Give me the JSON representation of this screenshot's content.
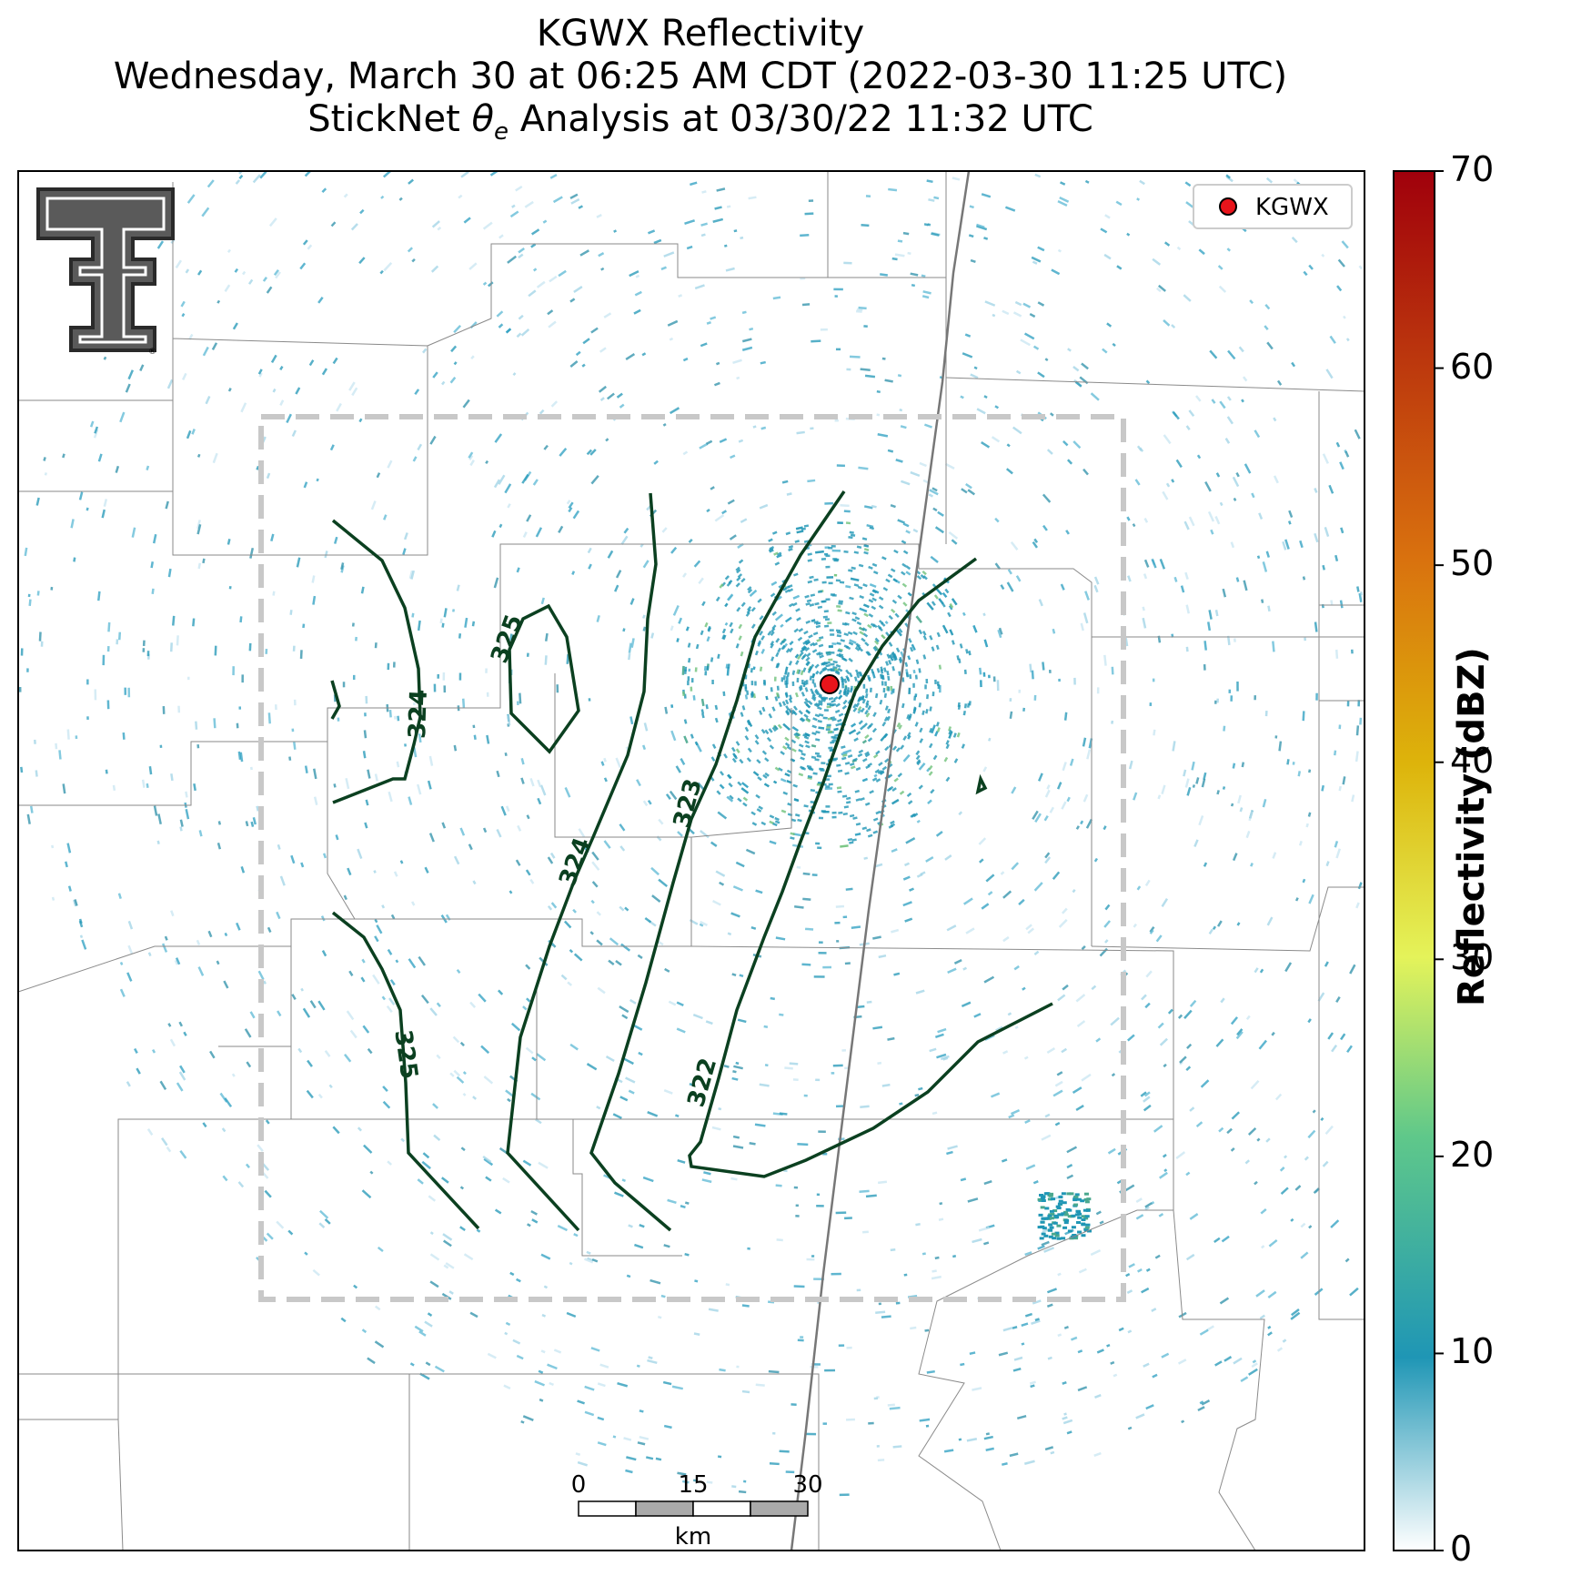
{
  "title": {
    "line1": "KGWX Reflectivity",
    "line2": "Wednesday, March 30 at 06:25 AM CDT (2022-03-30 11:25 UTC)",
    "line3_prefix": "StickNet ",
    "line3_theta": "θ",
    "line3_sub": "e",
    "line3_suffix": " Analysis at 03/30/22 11:32 UTC"
  },
  "legend": {
    "label": "KGWX",
    "marker_color": "#e8141b"
  },
  "radar_site": {
    "name": "KGWX"
  },
  "colorbar": {
    "label": "Reflectivity (dBZ)",
    "ticks": [
      "0",
      "10",
      "20",
      "30",
      "40",
      "50",
      "60",
      "70"
    ],
    "min": 0,
    "max": 70,
    "colors": [
      "#ffffff",
      "#1f96b5",
      "#5fc88a",
      "#e4f35a",
      "#ddb40b",
      "#d9710e",
      "#a0000c"
    ]
  },
  "contours": {
    "color": "#0b4020",
    "labels": [
      "325",
      "324",
      "325",
      "324",
      "323",
      "322",
      "325"
    ]
  },
  "scale_bar": {
    "ticks": [
      "0",
      "15",
      "30"
    ],
    "unit": "km"
  },
  "analysis_box": {
    "style": "dashed",
    "color": "#c8c8c8"
  },
  "logo": {
    "text": "T",
    "mark": "®"
  }
}
